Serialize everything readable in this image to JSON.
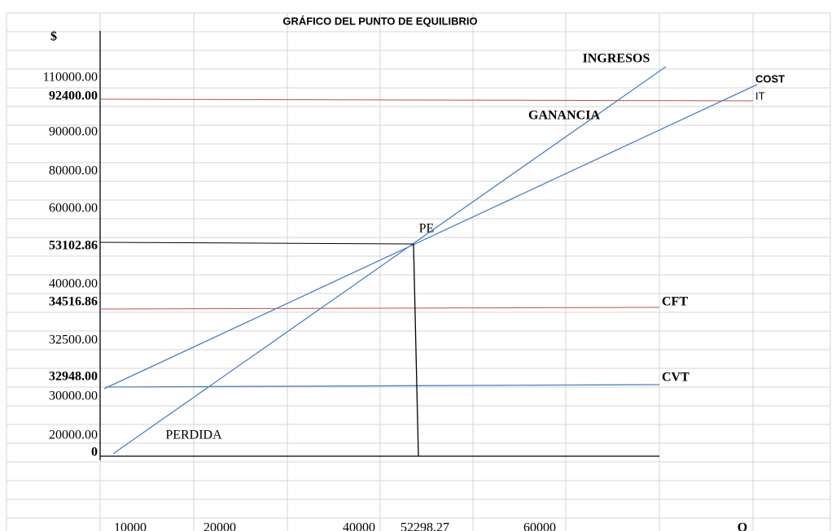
{
  "title": "GRÁFICO DEL PUNTO DE EQUILIBRIO",
  "y_axis_title": "$",
  "y_labels": [
    "110000.00",
    "92400.00",
    "90000.00",
    "80000.00",
    "60000.00",
    "53102.86",
    "40000.00",
    "34516.86",
    "32500.00",
    "32948.00",
    "30000.00",
    "20000.00",
    "0"
  ],
  "x_labels": [
    "10000",
    "20000",
    "40000",
    "52298.27",
    "60000"
  ],
  "x_axis_title": "Q",
  "annotations": {
    "ingresos": "INGRESOS",
    "cost": "COST",
    "it": "IT",
    "ganancia": "GANANCIA",
    "pe": "PE",
    "cft": "CFT",
    "cvt": "CVT",
    "perdida": "PERDIDA"
  }
}
